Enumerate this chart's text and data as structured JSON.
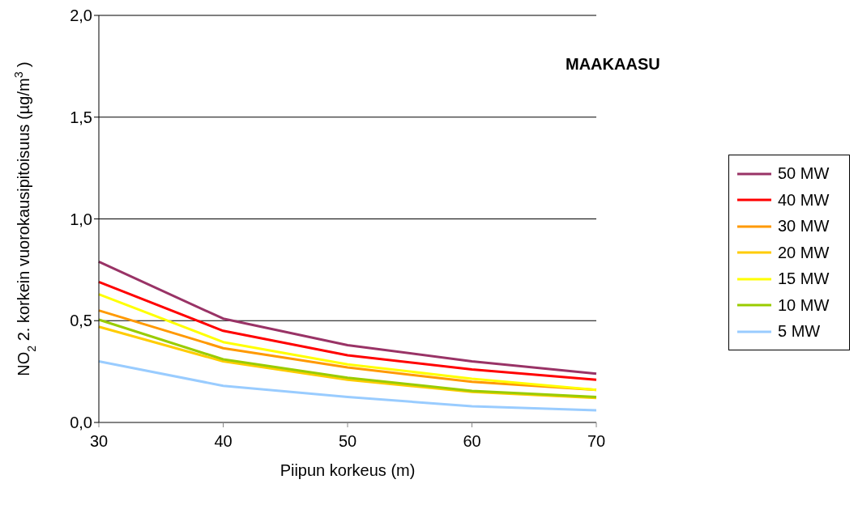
{
  "chart_data": {
    "type": "line",
    "xlabel": "Piipun korkeus (m)",
    "ylabel": "NO$_{2}$ 2. korkein vuorokausipitoisuus (µg/m$^{3}$)",
    "annotations": [
      "MAAKAASU"
    ],
    "categories": [
      "30",
      "40",
      "50",
      "60",
      "70"
    ],
    "series": [
      {
        "name": "50 MW",
        "color": "#993366",
        "values": [
          0.79,
          0.51,
          0.38,
          0.3,
          0.24
        ]
      },
      {
        "name": "40 MW",
        "color": "#ff0000",
        "values": [
          0.69,
          0.45,
          0.33,
          0.26,
          0.21
        ]
      },
      {
        "name": "30 MW",
        "color": "#ff9900",
        "values": [
          0.55,
          0.365,
          0.27,
          0.2,
          0.16
        ]
      },
      {
        "name": "20 MW",
        "color": "#ffcc00",
        "values": [
          0.47,
          0.3,
          0.21,
          0.15,
          0.12
        ]
      },
      {
        "name": "15 MW",
        "color": "#ffff00",
        "values": [
          0.63,
          0.395,
          0.285,
          0.215,
          0.16
        ]
      },
      {
        "name": "10 MW",
        "color": "#99cc00",
        "values": [
          0.505,
          0.31,
          0.22,
          0.155,
          0.125
        ]
      },
      {
        "name": "5 MW",
        "color": "#99ccff",
        "values": [
          0.3,
          0.18,
          0.125,
          0.08,
          0.06
        ]
      }
    ],
    "ylim": [
      0,
      2
    ],
    "yticks": [
      {
        "value": 0,
        "label": "0,0"
      },
      {
        "value": 0.5,
        "label": "0,5"
      },
      {
        "value": 1,
        "label": "1,0"
      },
      {
        "value": 1.5,
        "label": "1,5"
      },
      {
        "value": 2,
        "label": "2,0"
      }
    ],
    "grid": "y",
    "legend": "right"
  }
}
